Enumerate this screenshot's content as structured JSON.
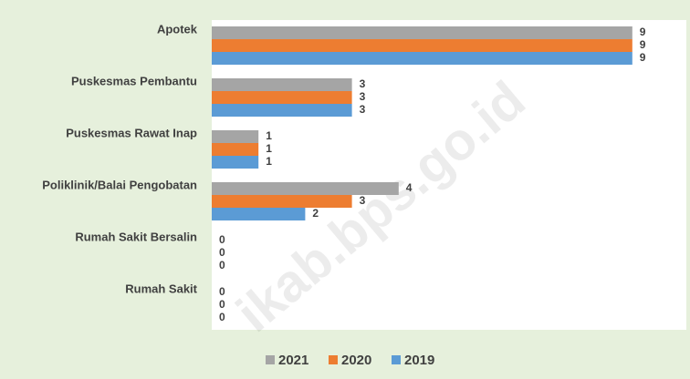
{
  "chart_data": {
    "type": "barh",
    "categories": [
      "Apotek",
      "Puskesmas Pembantu",
      "Puskesmas Rawat Inap",
      "Poliklinik/Balai Pengobatan",
      "Rumah Sakit Bersalin",
      "Rumah Sakit"
    ],
    "series": [
      {
        "name": "2021",
        "color": "#a5a5a5",
        "values": [
          9,
          3,
          1,
          4,
          0,
          0
        ]
      },
      {
        "name": "2020",
        "color": "#ed7d31",
        "values": [
          9,
          3,
          1,
          3,
          0,
          0
        ]
      },
      {
        "name": "2019",
        "color": "#5b9bd5",
        "values": [
          9,
          3,
          1,
          2,
          0,
          0
        ]
      }
    ],
    "legend": "bottom",
    "watermark": "ikab.bps.go.id"
  }
}
